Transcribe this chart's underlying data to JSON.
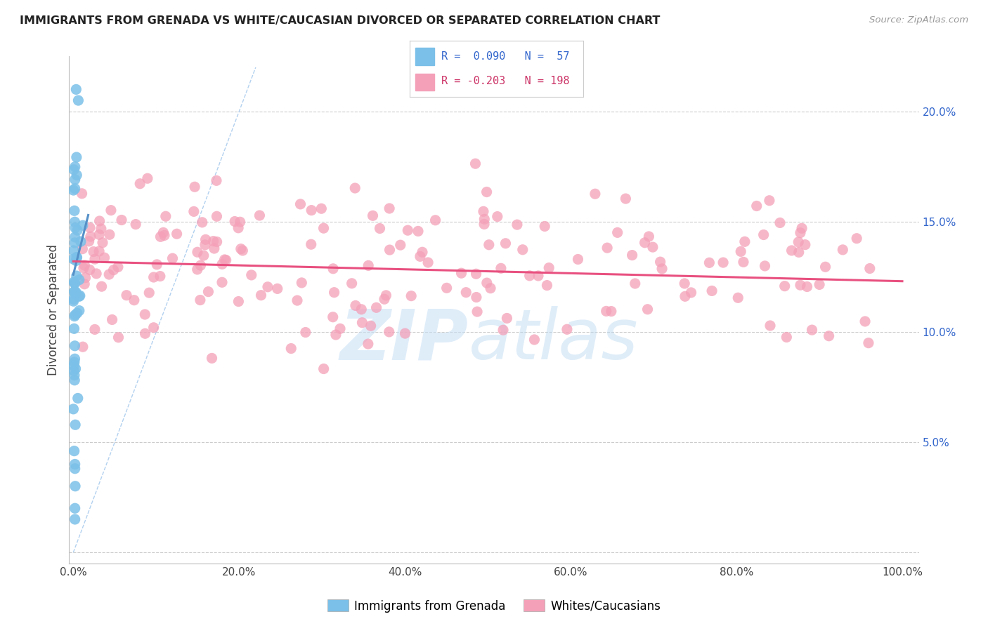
{
  "title": "IMMIGRANTS FROM GRENADA VS WHITE/CAUCASIAN DIVORCED OR SEPARATED CORRELATION CHART",
  "source": "Source: ZipAtlas.com",
  "ylabel": "Divorced or Separated",
  "y_ticks": [
    "",
    "5.0%",
    "10.0%",
    "15.0%",
    "20.0%"
  ],
  "y_tick_vals": [
    0.0,
    0.05,
    0.1,
    0.15,
    0.2
  ],
  "x_tick_positions": [
    0.0,
    0.2,
    0.4,
    0.6,
    0.8,
    1.0
  ],
  "x_tick_labels": [
    "0.0%",
    "20.0%",
    "40.0%",
    "60.0%",
    "80.0%",
    "100.0%"
  ],
  "xlim": [
    -0.005,
    1.02
  ],
  "ylim": [
    -0.005,
    0.225
  ],
  "legend_blue_label": "Immigrants from Grenada",
  "legend_pink_label": "Whites/Caucasians",
  "blue_color": "#7bc0e8",
  "pink_color": "#f4a0b8",
  "blue_line_color": "#5590c8",
  "pink_line_color": "#e85080",
  "diagonal_color": "#aaccee",
  "watermark_zip": "ZIP",
  "watermark_atlas": "atlas",
  "blue_R": 0.09,
  "blue_N": 57,
  "pink_R": -0.203,
  "pink_N": 198,
  "pink_line_start_y": 0.132,
  "pink_line_end_y": 0.123,
  "blue_line_intercept": 0.127,
  "blue_line_slope": 2.0
}
